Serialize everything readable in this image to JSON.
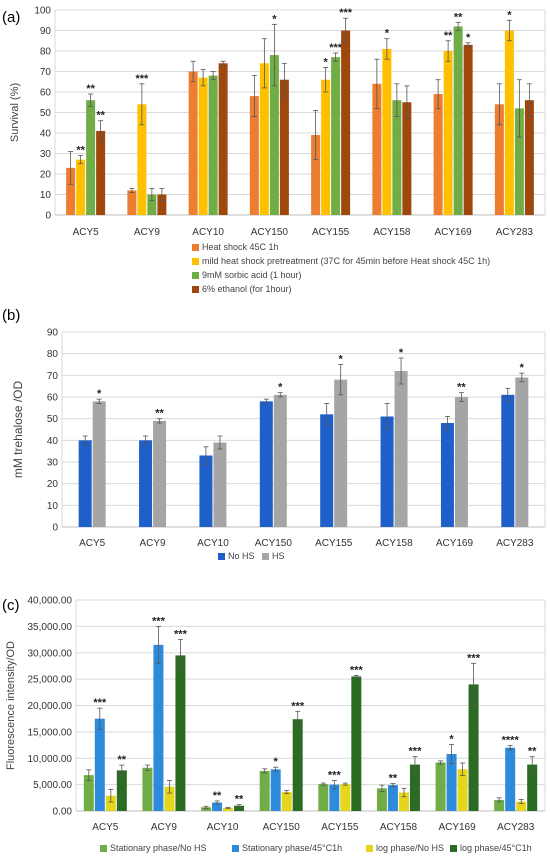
{
  "chart_data": [
    {
      "type": "bar",
      "panel": "(a)",
      "ylabel": "Survival (%)",
      "ylim": [
        0,
        100
      ],
      "ticks": [
        "0",
        "10",
        "20",
        "30",
        "40",
        "50",
        "60",
        "70",
        "80",
        "90",
        "100"
      ],
      "categories": [
        "ACY5",
        "ACY9",
        "ACY10",
        "ACY150",
        "ACY155",
        "ACY158",
        "ACY169",
        "ACY283"
      ],
      "legend_position": "bottom",
      "series": [
        {
          "name": "Heat shock 45C 1h",
          "color": "#ED7D31",
          "values": [
            23,
            12,
            70,
            58,
            39,
            64,
            59,
            54
          ],
          "errors": [
            8,
            1,
            5,
            10,
            12,
            12,
            7,
            10
          ],
          "stars": [
            "",
            "",
            "",
            "",
            "",
            "",
            "",
            ""
          ]
        },
        {
          "name": "mild heat shock pretreatment (37C for 45min before Heat shock 45C 1h)",
          "color": "#FFC000",
          "values": [
            27,
            54,
            67,
            74,
            66,
            81,
            80,
            90
          ],
          "errors": [
            2,
            10,
            4,
            12,
            6,
            5,
            5,
            5
          ],
          "stars": [
            "**",
            "***",
            "",
            "",
            "*",
            "*",
            "**",
            "*"
          ]
        },
        {
          "name": "9mM sorbic acid (1 hour)",
          "color": "#70AD47",
          "values": [
            56,
            10,
            68,
            78,
            77,
            56,
            92,
            52
          ],
          "errors": [
            3,
            3,
            2,
            15,
            2,
            8,
            2,
            14
          ],
          "stars": [
            "**",
            "",
            "",
            "*",
            "***",
            "",
            "**",
            ""
          ]
        },
        {
          "name": "6% ethanol (for 1hour)",
          "color": "#9E480E",
          "values": [
            41,
            10,
            74,
            66,
            90,
            55,
            83,
            56
          ],
          "errors": [
            5,
            3,
            1,
            8,
            6,
            8,
            1,
            8
          ],
          "stars": [
            "**",
            "",
            "",
            "",
            "***",
            "",
            "*",
            ""
          ]
        }
      ]
    },
    {
      "type": "bar",
      "panel": "(b)",
      "ylabel": "mM trehalose /OD",
      "ylim": [
        0,
        90
      ],
      "ticks": [
        "0",
        "10",
        "20",
        "30",
        "40",
        "50",
        "60",
        "70",
        "80",
        "90"
      ],
      "categories": [
        "ACY5",
        "ACY9",
        "ACY10",
        "ACY150",
        "ACY155",
        "ACY158",
        "ACY169",
        "ACY283"
      ],
      "legend_position": "bottom",
      "series": [
        {
          "name": "No HS",
          "color": "#1F5FC9",
          "values": [
            40,
            40,
            33,
            58,
            52,
            51,
            48,
            61
          ],
          "errors": [
            2,
            2,
            4,
            1,
            5,
            6,
            3,
            3
          ],
          "stars": [
            "",
            "",
            "",
            "",
            "",
            "",
            "",
            ""
          ]
        },
        {
          "name": "HS",
          "color": "#A5A5A5",
          "values": [
            58,
            49,
            39,
            61,
            68,
            72,
            60,
            69
          ],
          "errors": [
            1,
            1,
            3,
            1,
            7,
            6,
            2,
            2
          ],
          "stars": [
            "*",
            "**",
            "",
            "*",
            "*",
            "*",
            "**",
            "*"
          ]
        }
      ]
    },
    {
      "type": "bar",
      "panel": "(c)",
      "ylabel": "Fluorescence intensity/OD",
      "ylim": [
        0,
        40000
      ],
      "ticks": [
        "0.00",
        "5,000.00",
        "10,000.00",
        "15,000.00",
        "20,000.00",
        "25,000.00",
        "30,000.00",
        "35,000.00",
        "40,000.00"
      ],
      "categories": [
        "ACY5",
        "ACY9",
        "ACY10",
        "ACY150",
        "ACY155",
        "ACY158",
        "ACY169",
        "ACY283"
      ],
      "legend_position": "bottom",
      "series": [
        {
          "name": "Stationary phase/No HS",
          "color": "#70AD47",
          "values": [
            6800,
            8200,
            700,
            7600,
            5100,
            4300,
            9200,
            2100
          ],
          "errors": [
            1000,
            500,
            200,
            400,
            200,
            600,
            300,
            400
          ],
          "stars": [
            "",
            "",
            "",
            "",
            "",
            "",
            "",
            ""
          ]
        },
        {
          "name": "Stationary phase/45°C1h",
          "color": "#2E8BDB",
          "values": [
            17500,
            31500,
            1600,
            7900,
            5000,
            4900,
            10800,
            12000
          ],
          "errors": [
            2000,
            3500,
            300,
            400,
            800,
            300,
            1800,
            400
          ],
          "stars": [
            "***",
            "***",
            "**",
            "*",
            "***",
            "**",
            "*",
            "****"
          ]
        },
        {
          "name": "log phase/No HS",
          "color": "#E5D51C",
          "values": [
            2900,
            4600,
            600,
            3600,
            5100,
            3500,
            7900,
            1800
          ],
          "errors": [
            1200,
            1200,
            100,
            300,
            200,
            800,
            1200,
            400
          ],
          "stars": [
            "",
            "",
            "",
            "",
            "",
            "",
            "",
            ""
          ]
        },
        {
          "name": "log phase/45°C1h",
          "color": "#2C6B23",
          "values": [
            7700,
            29500,
            1000,
            17400,
            25500,
            8800,
            24000,
            8800
          ],
          "errors": [
            1000,
            3000,
            200,
            1500,
            200,
            1500,
            4000,
            1500
          ],
          "stars": [
            "**",
            "***",
            "**",
            "***",
            "***",
            "***",
            "***",
            "**"
          ]
        }
      ]
    }
  ]
}
